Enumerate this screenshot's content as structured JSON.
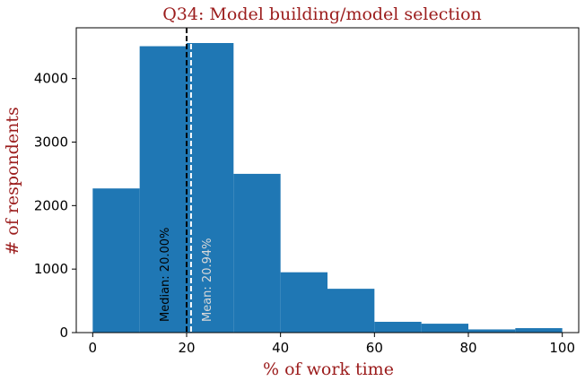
{
  "chart_data": {
    "type": "bar",
    "title": "Q34: Model building/model selection",
    "xlabel": "% of work time",
    "ylabel": "# of respondents",
    "bins": [
      {
        "x0": 0,
        "x1": 10,
        "count": 2270
      },
      {
        "x0": 10,
        "x1": 20,
        "count": 4510
      },
      {
        "x0": 20,
        "x1": 30,
        "count": 4560
      },
      {
        "x0": 30,
        "x1": 40,
        "count": 2500
      },
      {
        "x0": 40,
        "x1": 50,
        "count": 950
      },
      {
        "x0": 50,
        "x1": 60,
        "count": 690
      },
      {
        "x0": 60,
        "x1": 70,
        "count": 170
      },
      {
        "x0": 70,
        "x1": 80,
        "count": 140
      },
      {
        "x0": 80,
        "x1": 90,
        "count": 50
      },
      {
        "x0": 90,
        "x1": 100,
        "count": 70
      }
    ],
    "xlim": [
      -3.5,
      103.5
    ],
    "ylim": [
      0,
      4800
    ],
    "xticks": [
      0,
      20,
      40,
      60,
      80,
      100
    ],
    "yticks": [
      0,
      1000,
      2000,
      3000,
      4000
    ],
    "grid": false,
    "bar_color": "#1f77b4",
    "reference_lines": [
      {
        "name": "median",
        "x": 20.0,
        "label": "Median: 20.00%",
        "color": "#000000",
        "text_color": "#000000"
      },
      {
        "name": "mean",
        "x": 20.94,
        "label": "Mean: 20.94%",
        "color": "#ffffff",
        "text_color": "#d9d9d9"
      }
    ]
  }
}
